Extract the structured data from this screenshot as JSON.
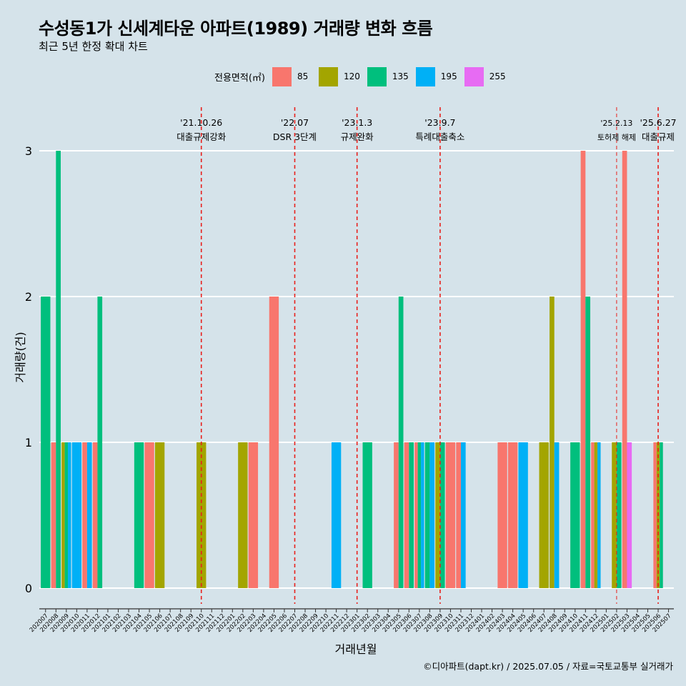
{
  "header": {
    "title": "수성동1가 신세계타운 아파트(1989) 거래량 변화 흐름",
    "subtitle": "최근 5년 한정 확대 차트"
  },
  "legend": {
    "title": "전용면적(㎡)",
    "items": [
      {
        "label": "85",
        "color": "#F8766D"
      },
      {
        "label": "120",
        "color": "#A3A500"
      },
      {
        "label": "135",
        "color": "#00BF7D"
      },
      {
        "label": "195",
        "color": "#00B0F6"
      },
      {
        "label": "255",
        "color": "#E76BF3"
      }
    ]
  },
  "footer": {
    "credit": "©디아파트(dapt.kr) / 2025.07.05 / 자료=국토교통부 실거래가"
  },
  "chart_data": {
    "type": "bar",
    "xlabel": "거래년월",
    "ylabel": "거래량(건)",
    "ylim": [
      0,
      3
    ],
    "yticks": [
      0,
      1,
      2,
      3
    ],
    "grid": true,
    "legend_position": "top",
    "categories": [
      "202007",
      "202008",
      "202009",
      "202010",
      "202011",
      "202012",
      "202101",
      "202102",
      "202103",
      "202104",
      "202105",
      "202106",
      "202107",
      "202108",
      "202109",
      "202110",
      "202111",
      "202112",
      "202201",
      "202202",
      "202203",
      "202204",
      "202205",
      "202206",
      "202207",
      "202208",
      "202209",
      "202210",
      "202211",
      "202212",
      "202301",
      "202302",
      "202303",
      "202304",
      "202305",
      "202306",
      "202307",
      "202308",
      "202309",
      "202310",
      "202311",
      "202312",
      "202401",
      "202402",
      "202403",
      "202404",
      "202405",
      "202406",
      "202407",
      "202408",
      "202409",
      "202410",
      "202411",
      "202412",
      "202501",
      "202502",
      "202503",
      "202504",
      "202505",
      "202506",
      "202507"
    ],
    "series": [
      {
        "name": "85",
        "color": "#F8766D",
        "values": [
          0,
          1,
          0,
          0,
          1,
          1,
          0,
          0,
          0,
          0,
          1,
          0,
          0,
          0,
          0,
          0,
          0,
          0,
          0,
          0,
          1,
          0,
          2,
          0,
          0,
          0,
          0,
          0,
          0,
          0,
          0,
          0,
          0,
          0,
          1,
          1,
          1,
          0,
          0,
          1,
          1,
          0,
          0,
          0,
          1,
          1,
          0,
          0,
          0,
          0,
          0,
          0,
          3,
          1,
          0,
          0,
          3,
          0,
          0,
          1,
          0
        ]
      },
      {
        "name": "120",
        "color": "#A3A500",
        "values": [
          0,
          0,
          1,
          0,
          0,
          0,
          0,
          0,
          0,
          0,
          0,
          1,
          0,
          0,
          0,
          1,
          0,
          0,
          0,
          1,
          0,
          0,
          0,
          0,
          0,
          0,
          0,
          0,
          0,
          0,
          0,
          0,
          0,
          0,
          0,
          0,
          0,
          0,
          1,
          0,
          0,
          0,
          0,
          0,
          0,
          0,
          0,
          0,
          1,
          2,
          0,
          0,
          0,
          1,
          0,
          1,
          0,
          0,
          0,
          1,
          0
        ]
      },
      {
        "name": "135",
        "color": "#00BF7D",
        "values": [
          2,
          3,
          1,
          0,
          0,
          2,
          0,
          0,
          0,
          1,
          0,
          0,
          0,
          0,
          0,
          0,
          0,
          0,
          0,
          0,
          0,
          0,
          0,
          0,
          0,
          0,
          0,
          0,
          0,
          0,
          0,
          1,
          0,
          0,
          2,
          1,
          1,
          1,
          1,
          0,
          0,
          0,
          0,
          0,
          0,
          0,
          0,
          0,
          0,
          0,
          0,
          1,
          2,
          0,
          0,
          1,
          0,
          0,
          0,
          1,
          0
        ]
      },
      {
        "name": "195",
        "color": "#00B0F6",
        "values": [
          0,
          0,
          1,
          1,
          1,
          0,
          0,
          0,
          0,
          0,
          0,
          0,
          0,
          0,
          0,
          0,
          0,
          0,
          0,
          0,
          0,
          0,
          0,
          0,
          0,
          0,
          0,
          0,
          1,
          0,
          0,
          0,
          0,
          0,
          0,
          0,
          1,
          1,
          0,
          0,
          1,
          0,
          0,
          0,
          0,
          0,
          1,
          0,
          0,
          1,
          0,
          0,
          0,
          1,
          0,
          0,
          0,
          0,
          0,
          0,
          0
        ]
      },
      {
        "name": "255",
        "color": "#E76BF3",
        "values": [
          0,
          0,
          0,
          0,
          0,
          0,
          0,
          0,
          0,
          0,
          0,
          0,
          0,
          0,
          0,
          0,
          0,
          0,
          0,
          0,
          0,
          0,
          0,
          0,
          0,
          0,
          0,
          0,
          0,
          0,
          0,
          0,
          0,
          0,
          0,
          0,
          0,
          0,
          0,
          0,
          0,
          0,
          0,
          0,
          0,
          0,
          0,
          0,
          0,
          0,
          0,
          0,
          0,
          0,
          0,
          0,
          1,
          0,
          0,
          0,
          0
        ]
      }
    ],
    "annotations": [
      {
        "category": "202110",
        "date": "'21.10.26",
        "text": "대출규제강화"
      },
      {
        "category": "202207",
        "date": "'22.07",
        "text": "DSR 3단계"
      },
      {
        "category": "202301",
        "date": "'23.1.3",
        "text": "규제완화"
      },
      {
        "category": "202309",
        "date": "'23.9.7",
        "text": "특례대출축소"
      },
      {
        "category": "202502",
        "date": "'25.2.13",
        "text": "토허제 해제"
      },
      {
        "category": "202506",
        "date": "'25.6.27",
        "text": "대출규제"
      }
    ]
  }
}
